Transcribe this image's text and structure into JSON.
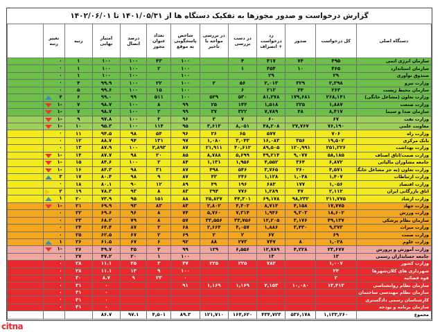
{
  "title": "گزارش درخواست و صدور مجوزها به تفکیک دستگاه ها از ۱۴۰۱/۰۵/۳۱ تا ۱۴۰۲/۰۶/۰۱",
  "headers": [
    "دستگاه اصلی",
    "کل درخواست",
    "صدور",
    "رد درخواست + انصراف",
    "در دست بررسی",
    "در بررسی مواجه با تاخیر",
    "شاخص پاسخگویی به موقع",
    "تعداد عنوان مجوز",
    "درصد اتصال",
    "امتیاز نهایی",
    "رتبه",
    "تغییر رتبه"
  ],
  "rows": [
    {
      "cls": "green",
      "org": "سازمان انرژی اتمی",
      "req": "۴۹۵",
      "iss": "۷۴",
      "rej": "۴۱۷",
      "rev": "۴",
      "del": "",
      "ontime": "۱۰۰",
      "cnt": "۴۳",
      "conn": "۱۰۰",
      "score": "۱۰۰",
      "rank": "۱",
      "chg": "۰",
      "arrow": ""
    },
    {
      "cls": "green",
      "org": "سازمان استاندارد",
      "req": "۴۶۵",
      "iss": "۱۰",
      "rej": "۴۵۴",
      "rev": "۱",
      "del": "",
      "ontime": "۱۰۰",
      "cnt": "۲",
      "conn": "۱۰۰",
      "score": "۱۰۰",
      "rank": "۱",
      "chg": "۰",
      "arrow": ""
    },
    {
      "cls": "green",
      "org": "صندوق نوآوری",
      "req": "۲۹",
      "iss": "",
      "rej": "۲۹",
      "rev": "",
      "del": "",
      "ontime": "۱۰۰",
      "cnt": "",
      "conn": "۱۰۰",
      "score": "۱۰۰",
      "rank": "۱",
      "chg": "۰",
      "arrow": ""
    },
    {
      "cls": "green",
      "org": "وزارت نیرو",
      "req": "۲,۳۹۸",
      "iss": "۳۲۹",
      "rej": "۲,۰۱۳",
      "rev": "۵۶",
      "del": "۲",
      "ontime": "۱۰۰",
      "cnt": "۲۲",
      "conn": "۱۰۰",
      "score": "۹۹.۹",
      "rank": "۴",
      "chg": "۰",
      "arrow": ""
    },
    {
      "cls": "green",
      "org": "سازمان محیط زیست",
      "req": "۲۶۳",
      "iss": "۴۴",
      "rej": "۲۱۳",
      "rev": "۶",
      "del": "",
      "ontime": "۱۰۰",
      "cnt": "۱۵",
      "conn": "۱۰۰",
      "score": "۹۹.۶",
      "rank": "۵",
      "chg": "۰",
      "arrow": ""
    },
    {
      "cls": "green",
      "org": "وزارت تعاون (مشاغل خانگی)",
      "req": "۲۶۸,۱۴۱",
      "iss": "۱۷۹,۶۸۱",
      "rej": "۸۱,۲۷۸",
      "rev": "۵۳۰",
      "del": "۵۲۹",
      "ontime": "۱۰۰",
      "cnt": "۵۱۱",
      "conn": "۹۹",
      "score": "۹۹.۰",
      "rank": "۶",
      "chg": "۴",
      "arrow": "up"
    },
    {
      "cls": "green",
      "org": "وزارت صنعت",
      "req": "۱,۸۸۷",
      "iss": "۲۲۵",
      "rej": "۱,۵۱۸",
      "rev": "۱۴۴",
      "del": "۲۵",
      "ontime": "۹۹",
      "cnt": "۸",
      "conn": "۱۰۰",
      "score": "۹۸.۷",
      "rank": "۷",
      "chg": "-۱",
      "arrow": "down"
    },
    {
      "cls": "green",
      "org": "سازمان صدا و سیما",
      "req": "۸,۴۱۷",
      "iss": "۴۸",
      "rej": "۷,۷۸۹",
      "rev": "۳۲۲",
      "del": "۳۷",
      "ontime": "۹۹",
      "cnt": "۲",
      "conn": "۱۰۰",
      "score": "۹۸.۷",
      "rank": "۷",
      "chg": "-۱",
      "arrow": "down"
    },
    {
      "cls": "lgreen",
      "org": "وزارت نفت",
      "req": "۶۷",
      "iss": "",
      "rej": "۶۰",
      "rev": "۷",
      "del": "۳",
      "ontime": "۹۶",
      "cnt": "۳",
      "conn": "۱۰۰",
      "score": "۹۷.۸",
      "rank": "۹",
      "chg": "-۱",
      "arrow": "down"
    },
    {
      "cls": "lgreen",
      "org": "معاونت علمی",
      "req": "۷۶,۱۹۰",
      "iss": "۲۷,۷۶۷",
      "rej": "۴۸,۲۰۸",
      "rev": "۸,۰۵۱",
      "del": "۳,۶۱۳",
      "ontime": "۹۵",
      "cnt": "۱۱۴",
      "conn": "۱۰۰",
      "score": "۹۵.۳",
      "rank": "۱۰",
      "chg": "-۱",
      "arrow": "down"
    },
    {
      "cls": "yellow",
      "org": "وزارت راه",
      "req": "۷۰۶",
      "iss": "",
      "rej": "۵۷۷",
      "rev": "۶۵",
      "del": "۲۶",
      "ontime": "۹۶",
      "cnt": "۵۴",
      "conn": "۹۸",
      "score": "۹۴.۵",
      "rank": "۱۱",
      "chg": "۰",
      "arrow": ""
    },
    {
      "cls": "yellow",
      "org": "بانک مرکزی",
      "req": "۱۹,۵۰۲",
      "iss": "۳۵۶",
      "rej": "۱۶,۰۸۳",
      "rev": "۳,۰۴۳",
      "del": "۱,۰۸۰",
      "ontime": "۹۷",
      "cnt": "۱۳۱",
      "conn": "۹۴",
      "score": "۸۸.۷",
      "rank": "۱۲",
      "chg": "۰",
      "arrow": ""
    },
    {
      "cls": "yellow",
      "org": "وزارت بهداشت",
      "req": "۲۵۱,۲۲۶",
      "iss": "۱۲۰,۹۹۱",
      "rej": "۸۹,۵۰۵",
      "rev": "۴۰,۶۱۲",
      "del": "۲۱,۹۱۱",
      "ontime": "۸۷",
      "cnt": "۲,۸۹۳",
      "conn": "۱۰۰",
      "score": "۸۷.۹",
      "rank": "۱۳",
      "chg": "۰",
      "arrow": ""
    },
    {
      "cls": "yellow",
      "org": "وزارت صمت/اتاق اصناف",
      "req": "۵۸,۱۸۵",
      "iss": "۹,۰۷۷",
      "rej": "۴۹,۲۱۴",
      "rev": "۵,۶۹۹",
      "del": "۸,۷۸۸",
      "ontime": "۸۵",
      "cnt": "۲۰",
      "conn": "۹۸",
      "score": "۸۷.۷",
      "rank": "۱۴",
      "chg": "-۱",
      "arrow": "down"
    },
    {
      "cls": "yellow",
      "org": "جامعه مشاوران مالیاتی",
      "req": "۶,۸۷۲",
      "iss": "۳۶۴",
      "rej": "۴,۵۵۲",
      "rev": "۱,۹۵۶",
      "del": "۱,۱۳۱",
      "ontime": "۸۴",
      "cnt": "۲",
      "conn": "۱۰۰",
      "score": "۸۴.۶",
      "rank": "۱۵",
      "chg": "-۱",
      "arrow": "down"
    },
    {
      "cls": "yellow",
      "org": "وزارت تعاون (به جز مشاغل خانگی)",
      "req": "۴,۵۷۱",
      "iss": "۲۶۰",
      "rej": "۳,۷۶۵",
      "rev": "۵۴۶",
      "del": "۴۹۸",
      "ontime": "۸۷",
      "cnt": "۳۱",
      "conn": "۹۸",
      "score": "۸۴.۳",
      "rank": "۱۶",
      "chg": "-۱",
      "arrow": "down"
    },
    {
      "cls": "yellow",
      "org": "وزارت ارتباطات",
      "req": "۱,۴۰۷",
      "iss": "۱,۰۴۸",
      "rej": "۱,۱۲۸",
      "rev": "۲۴۶",
      "del": "۴۳",
      "ontime": "۸۷",
      "cnt": "۹",
      "conn": "۹۸",
      "score": "۸۰.۴",
      "rank": "۱۷",
      "chg": "۳",
      "arrow": "up"
    },
    {
      "cls": "yellow",
      "org": "وزارت اقتصاد",
      "req": "۱,۰۵۶",
      "iss": "۱۷۷",
      "rej": "۶۸۳",
      "rev": "۱۹۶",
      "del": "۴۹",
      "ontime": "۸۹",
      "cnt": "۱۲",
      "conn": "۹۰",
      "score": "۸۰.۱",
      "rank": "۱۸",
      "chg": "۰",
      "arrow": ""
    },
    {
      "cls": "yellow",
      "org": "اتاق بازرگانی ایران",
      "req": "۲,۱۱۲",
      "iss": "۴۷",
      "rej": "۱,۲۸۹",
      "rev": "۷۷۶",
      "del": "۳۹۴",
      "ontime": "۸۳",
      "cnt": "۸",
      "conn": "۹۳",
      "score": "۷۸.۳",
      "rank": "۱۹",
      "chg": "۲",
      "arrow": "side"
    },
    {
      "cls": "yellow",
      "org": "وزارت ارشاد",
      "req": "۲۱۱,۷۷۵",
      "iss": "۹۸,۲۳۲",
      "rej": "۶۹,۱۷۸",
      "rev": "۴۴,۳۰۱",
      "del": "۲۵,۸۲۷",
      "ontime": "۸۸",
      "cnt": "۱۵۱",
      "conn": "۹۵",
      "score": "۷۳.۹",
      "rank": "۲۰",
      "chg": "۱",
      "arrow": "up"
    },
    {
      "cls": "orange",
      "org": "وزارت جهاد",
      "req": "۱۷,۷۷۵",
      "iss": "۴,۱۵۸",
      "rej": "۸,۷۱۴",
      "rev": "۴,۴۰۲",
      "del": "۲,۸۰۲",
      "ontime": "۸۳",
      "cnt": "۸۳",
      "conn": "۹۳",
      "score": "۶۹.۹",
      "rank": "۲۱",
      "chg": "-۱",
      "arrow": "down"
    },
    {
      "cls": "orange",
      "org": "وزارت ورزش",
      "req": "۱۸,۶۰۲",
      "iss": "۹,۳۰۳",
      "rej": "۱,۹۴۶",
      "rev": "۷,۳۱۴",
      "del": "۵,۷۶۰",
      "ontime": "۷۴",
      "cnt": "۸",
      "conn": "۹۶",
      "score": "۶۹.۶",
      "rank": "۲۲",
      "chg": "۰",
      "arrow": ""
    },
    {
      "cls": "orange",
      "org": "سازمان نظام پزشکی",
      "req": "۴۹,۱۳۷",
      "iss": "۳,۱۷۶",
      "rej": "۱۲,۲۰۵",
      "rev": "۳۳,۷۵۶",
      "del": "۳۳,۵۵۶",
      "ontime": "۵۷",
      "cnt": "۸",
      "conn": "۷۹",
      "score": "۶۸.۲",
      "rank": "۲۳",
      "chg": "۰",
      "arrow": ""
    },
    {
      "cls": "orange",
      "org": "وزارت میراث",
      "req": "۹,۳۷۳",
      "iss": "۳,۴۳۰",
      "rej": "۱,۸۸۶",
      "rev": "۴,۰۵۷",
      "del": "۲,۶۶۴",
      "ontime": "۶۸",
      "cnt": "۲",
      "conn": "۸۷",
      "score": "۶۴.۴",
      "rank": "۲۴",
      "chg": "۰",
      "arrow": ""
    },
    {
      "cls": "orange",
      "org": "وزارت صمت",
      "req": "۶۹",
      "iss": "",
      "rej": "۶۷",
      "rev": "۲",
      "del": "۲",
      "ontime": "۶۹",
      "cnt": "۲",
      "conn": "۶۷",
      "score": "۶۲.۵",
      "rank": "۲۵",
      "chg": "۰",
      "arrow": ""
    },
    {
      "cls": "orange",
      "org": "وزارت علوم",
      "req": "۱,۰۲۸",
      "iss": "۸",
      "rej": "۷۴۷",
      "rev": "۲۷۳",
      "del": "۸۸",
      "ontime": "۹۲",
      "cnt": "۶",
      "conn": "۶۷",
      "score": "۶۱.۵",
      "rank": "۲۶",
      "chg": "۱",
      "arrow": "up"
    },
    {
      "cls": "pink",
      "org": "وزارت آموزش و پرورش",
      "req": "۲۳,۶۷۷",
      "iss": "۴,۲۲۸",
      "rej": "۱۲,۷۸۹",
      "rev": "۶,۵۵۶",
      "del": "۱۲۹",
      "ontime": "۹۹",
      "cnt": "۳",
      "conn": "۳۵",
      "score": "۴۹.۷",
      "rank": "۲۶",
      "chg": "-۱",
      "arrow": "down"
    },
    {
      "cls": "pink",
      "org": "جامعه حسابداران رسمی",
      "req": "۱۳",
      "iss": "",
      "rej": "۱۳",
      "rev": "",
      "del": "",
      "ontime": "۱۰۰",
      "cnt": "۱",
      "conn": "۲۰",
      "score": "۴۷.۲",
      "rank": "۲۷",
      "chg": "۰",
      "arrow": ""
    },
    {
      "cls": "red",
      "org": "وزارت کشور",
      "req": "۱,۰۰۷",
      "iss": "",
      "rej": "۷۸۲",
      "rev": "۲۲۵",
      "del": "۲۲۵",
      "ontime": "۴۷",
      "cnt": "۳",
      "conn": "۲۵",
      "score": "۱۱.۱",
      "rank": "۲۸",
      "chg": "۰",
      "arrow": ""
    },
    {
      "cls": "red",
      "org": "شهرداری های کلان‌شهرها",
      "req": "۲۴",
      "iss": "",
      "rej": "",
      "rev": "",
      "del": "",
      "ontime": "۱۰۰",
      "cnt": "۹",
      "conn": "۱۳",
      "score": "۱۱.۱",
      "rank": "۲۸",
      "chg": "۰",
      "arrow": ""
    },
    {
      "cls": "red",
      "org": "قوه قضائیه",
      "req": "۲",
      "iss": "",
      "rej": "",
      "rev": "",
      "del": "",
      "ontime": "۰",
      "cnt": "۲۳",
      "conn": "۹",
      "score": "۸.۷",
      "rank": "۳۰",
      "chg": "۰",
      "arrow": ""
    },
    {
      "cls": "red",
      "org": "سازمان نظام روانشناسی",
      "req": "۱۳,۴۱۳",
      "iss": "۱۰,۰۸۰",
      "rej": "۲,۱۵۳",
      "rev": "۱,۱۶۹",
      "del": "۱,۱۶۹",
      "ontime": "۹۱",
      "cnt": "",
      "conn": "",
      "score": "۰",
      "rank": "۳۱",
      "chg": "۰",
      "arrow": ""
    },
    {
      "cls": "red",
      "org": "سازمان نظام مهندسی ساختمان",
      "req": "",
      "iss": "",
      "rej": "",
      "rev": "",
      "del": "",
      "ontime": "",
      "cnt": "",
      "conn": "",
      "score": "۰",
      "rank": "۳۱",
      "chg": "۰",
      "arrow": ""
    },
    {
      "cls": "red",
      "org": "کارشناسان رسمی دادگستری",
      "req": "",
      "iss": "",
      "rej": "",
      "rev": "",
      "del": "",
      "ontime": "",
      "cnt": "",
      "conn": "",
      "score": "۰",
      "rank": "۳۱",
      "chg": "۰",
      "arrow": ""
    },
    {
      "cls": "red",
      "org": "سازمان برنامه و بودجه",
      "req": "",
      "iss": "",
      "rej": "",
      "rev": "",
      "del": "",
      "ontime": "",
      "cnt": "",
      "conn": "",
      "score": "۰",
      "rank": "۳۱",
      "chg": "۰",
      "arrow": ""
    }
  ],
  "total": {
    "org": "مجموع",
    "req": "۱,۱۳۳,۲۶۰",
    "iss": "۵۳۶,۱۷۸",
    "rej": "۴۳۴,۷۲۳",
    "rev": "۱۶۴,۶۲۰",
    "del": "۱۲۱,۷۱۰",
    "ontime": "۸۹.۳",
    "cnt": "۴,۵۰۱",
    "conn": "۹۷.۱",
    "score": "۸۶.۷",
    "rank": "",
    "chg": ""
  },
  "logo": {
    "text_a": "cit",
    "text_b": "na"
  }
}
